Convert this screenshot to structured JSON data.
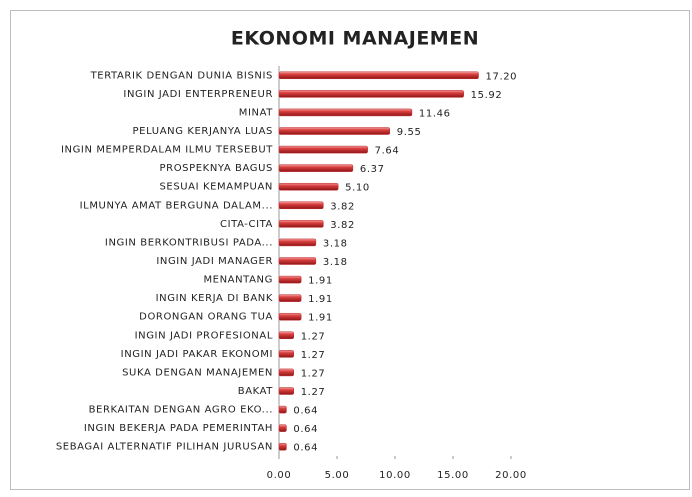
{
  "chart_data": {
    "type": "bar",
    "orientation": "horizontal",
    "title": "EKONOMI MANAJEMEN",
    "categories": [
      "TERTARIK DENGAN DUNIA BISNIS",
      "INGIN JADI ENTERPRENEUR",
      "MINAT",
      "PELUANG KERJANYA LUAS",
      "INGIN MEMPERDALAM ILMU TERSEBUT",
      "PROSPEKNYA BAGUS",
      "SESUAI KEMAMPUAN",
      "ILMUNYA AMAT BERGUNA DALAM...",
      "CITA-CITA",
      "INGIN BERKONTRIBUSI PADA...",
      "INGIN JADI MANAGER",
      "MENANTANG",
      "INGIN KERJA DI BANK",
      "DORONGAN ORANG TUA",
      "INGIN JADI PROFESIONAL",
      "INGIN JADI PAKAR EKONOMI",
      "SUKA DENGAN MANAJEMEN",
      "BAKAT",
      "BERKAITAN DENGAN AGRO EKO...",
      "INGIN BEKERJA PADA PEMERINTAH",
      "SEBAGAI ALTERNATIF PILIHAN JURUSAN"
    ],
    "values": [
      17.2,
      15.92,
      11.46,
      9.55,
      7.64,
      6.37,
      5.1,
      3.82,
      3.82,
      3.18,
      3.18,
      1.91,
      1.91,
      1.91,
      1.27,
      1.27,
      1.27,
      1.27,
      0.64,
      0.64,
      0.64
    ],
    "value_labels": [
      "17.20",
      "15.92",
      "11.46",
      "9.55",
      "7.64",
      "6.37",
      "5.10",
      "3.82",
      "3.82",
      "3.18",
      "3.18",
      "1.91",
      "1.91",
      "1.91",
      "1.27",
      "1.27",
      "1.27",
      "1.27",
      "0.64",
      "0.64",
      "0.64"
    ],
    "color": "#c0262a",
    "xlim": [
      0,
      20
    ],
    "xticks": [
      {
        "value": 0,
        "label": "0.00"
      },
      {
        "value": 5,
        "label": "5.00"
      },
      {
        "value": 10,
        "label": "10.00"
      },
      {
        "value": 15,
        "label": "15.00"
      },
      {
        "value": 20,
        "label": "20.00"
      }
    ],
    "grid": false
  }
}
